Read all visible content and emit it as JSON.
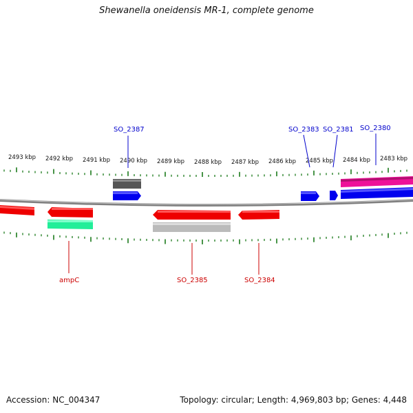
{
  "title": "Shewanella oneidensis MR-1, complete genome",
  "footer": {
    "accession": "Accession: NC_004347",
    "summary": "Topology: circular; Length: 4,969,803 bp; Genes: 4,448"
  },
  "ruler": {
    "labels": [
      "2493 kbp",
      "2492 kbp",
      "2491 kbp",
      "2490 kbp",
      "2489 kbp",
      "2488 kbp",
      "2487 kbp",
      "2486 kbp",
      "2485 kbp",
      "2484 kbp",
      "2483 kbp"
    ]
  },
  "gene_labels": {
    "forward": [
      "SO_2387",
      "SO_2383",
      "SO_2381",
      "SO_2380"
    ],
    "reverse": [
      "ampC",
      "SO_2385",
      "SO_2384"
    ]
  },
  "colors": {
    "forward_label": "#0000cc",
    "reverse_label": "#cc0000",
    "tick": "#1a7a1a",
    "backbone": "#808080",
    "forward_gene": "#0000ee",
    "reverse_gene": "#ee0000",
    "pink": "#ee1199",
    "teal": "#22ee99",
    "dark_gray": "#555555",
    "light_gray": "#bbbbbb"
  }
}
